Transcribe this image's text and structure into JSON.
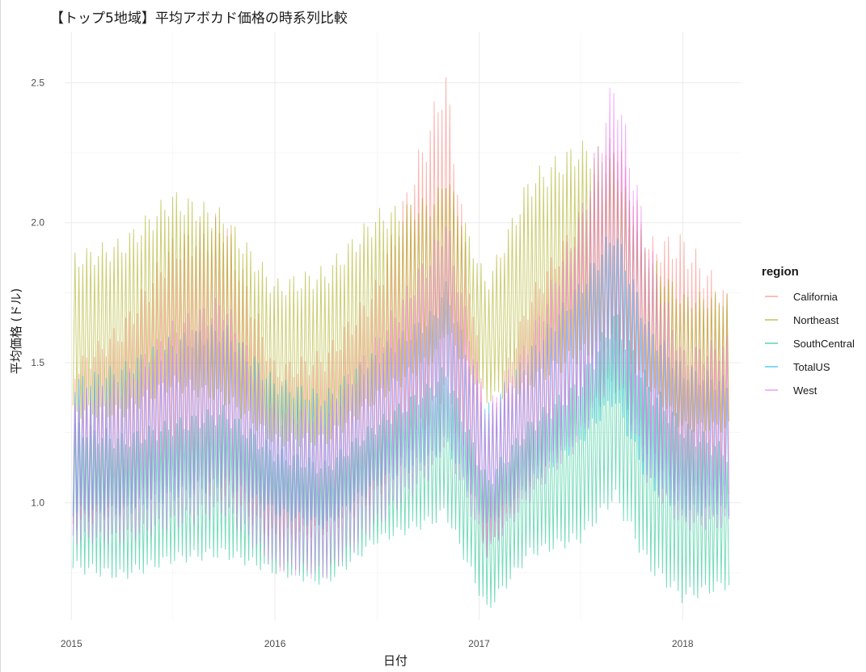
{
  "title": "【トップ5地域】平均アボカド価格の時系列比較",
  "chart_data": {
    "type": "line",
    "title": "【トップ5地域】平均アボカド価格の時系列比較",
    "xlabel": "日付",
    "ylabel": "平均価格 (ドル)",
    "x_ticks": [
      "2015",
      "2016",
      "2017",
      "2018"
    ],
    "y_ticks": [
      "1.0",
      "1.5",
      "2.0",
      "2.5"
    ],
    "xlim": [
      "2014-12-20",
      "2018-04-15"
    ],
    "ylim": [
      0.58,
      2.68
    ],
    "grid": true,
    "legend_title": "region",
    "legend_position": "right",
    "series": [
      {
        "name": "California",
        "color": "#F8766D",
        "x": [
          "2015-01-04",
          "2015-04-01",
          "2015-07-01",
          "2015-10-01",
          "2016-01-01",
          "2016-04-01",
          "2016-07-01",
          "2016-10-15",
          "2016-11-01",
          "2017-01-15",
          "2017-04-01",
          "2017-07-01",
          "2017-09-01",
          "2017-11-01",
          "2018-01-01",
          "2018-03-25"
        ],
        "low": [
          0.9,
          0.95,
          1.05,
          1.0,
          0.85,
          0.88,
          1.0,
          1.3,
          1.4,
          0.8,
          1.05,
          1.25,
          1.4,
          1.15,
          1.0,
          1.0
        ],
        "high": [
          1.5,
          1.65,
          1.95,
          2.05,
          1.5,
          1.55,
          1.8,
          2.45,
          2.58,
          1.3,
          1.75,
          2.05,
          2.35,
          1.95,
          1.97,
          1.75
        ]
      },
      {
        "name": "Northeast",
        "color": "#A3A500",
        "x": [
          "2015-01-04",
          "2015-04-01",
          "2015-07-01",
          "2015-10-01",
          "2016-01-01",
          "2016-04-01",
          "2016-07-01",
          "2016-10-15",
          "2016-11-01",
          "2017-01-15",
          "2017-04-01",
          "2017-07-01",
          "2017-09-01",
          "2017-11-01",
          "2018-01-01",
          "2018-03-25"
        ],
        "low": [
          1.3,
          1.3,
          1.4,
          1.35,
          1.2,
          1.2,
          1.35,
          1.5,
          1.6,
          1.35,
          1.4,
          1.5,
          1.55,
          1.4,
          1.25,
          1.25
        ],
        "high": [
          1.9,
          1.95,
          2.12,
          2.05,
          1.8,
          1.85,
          2.05,
          2.1,
          2.2,
          1.8,
          2.18,
          2.3,
          2.25,
          1.9,
          1.75,
          1.76
        ]
      },
      {
        "name": "SouthCentral",
        "color": "#00BF7D",
        "x": [
          "2015-01-04",
          "2015-04-01",
          "2015-07-01",
          "2015-10-01",
          "2016-01-01",
          "2016-04-01",
          "2016-07-01",
          "2016-10-15",
          "2016-11-01",
          "2017-01-15",
          "2017-04-01",
          "2017-07-01",
          "2017-09-01",
          "2017-11-01",
          "2018-01-01",
          "2018-03-25"
        ],
        "low": [
          0.75,
          0.72,
          0.78,
          0.8,
          0.74,
          0.7,
          0.85,
          0.92,
          0.95,
          0.6,
          0.8,
          0.85,
          1.0,
          0.75,
          0.64,
          0.69
        ],
        "high": [
          1.3,
          1.25,
          1.3,
          1.35,
          1.2,
          1.15,
          1.3,
          1.45,
          1.5,
          1.1,
          1.3,
          1.45,
          1.7,
          1.45,
          1.3,
          1.2
        ]
      },
      {
        "name": "TotalUS",
        "color": "#00B0F6",
        "x": [
          "2015-01-04",
          "2015-04-01",
          "2015-07-01",
          "2015-10-01",
          "2016-01-01",
          "2016-04-01",
          "2016-07-01",
          "2016-10-15",
          "2016-11-01",
          "2017-01-15",
          "2017-04-01",
          "2017-07-01",
          "2017-09-01",
          "2017-11-01",
          "2018-01-01",
          "2018-03-25"
        ],
        "low": [
          0.95,
          0.95,
          1.0,
          1.05,
          0.95,
          0.9,
          1.05,
          1.15,
          1.2,
          0.9,
          1.05,
          1.2,
          1.35,
          1.05,
          0.95,
          0.95
        ],
        "high": [
          1.45,
          1.5,
          1.6,
          1.65,
          1.45,
          1.4,
          1.55,
          1.7,
          1.8,
          1.35,
          1.55,
          1.8,
          2.0,
          1.65,
          1.5,
          1.45
        ]
      },
      {
        "name": "West",
        "color": "#E76BF3",
        "x": [
          "2015-01-04",
          "2015-04-01",
          "2015-07-01",
          "2015-10-01",
          "2016-01-01",
          "2016-04-01",
          "2016-07-01",
          "2016-10-15",
          "2016-11-01",
          "2017-01-15",
          "2017-04-01",
          "2017-07-01",
          "2017-09-01",
          "2017-11-01",
          "2018-01-01",
          "2018-03-25"
        ],
        "low": [
          0.85,
          0.85,
          0.9,
          0.95,
          0.75,
          0.72,
          0.9,
          1.1,
          1.2,
          0.8,
          1.0,
          1.2,
          1.45,
          1.05,
          0.9,
          0.9
        ],
        "high": [
          1.4,
          1.45,
          1.65,
          1.75,
          1.35,
          1.35,
          1.6,
          1.95,
          2.05,
          1.35,
          1.6,
          2.05,
          2.55,
          1.95,
          1.55,
          1.6
        ]
      }
    ]
  }
}
